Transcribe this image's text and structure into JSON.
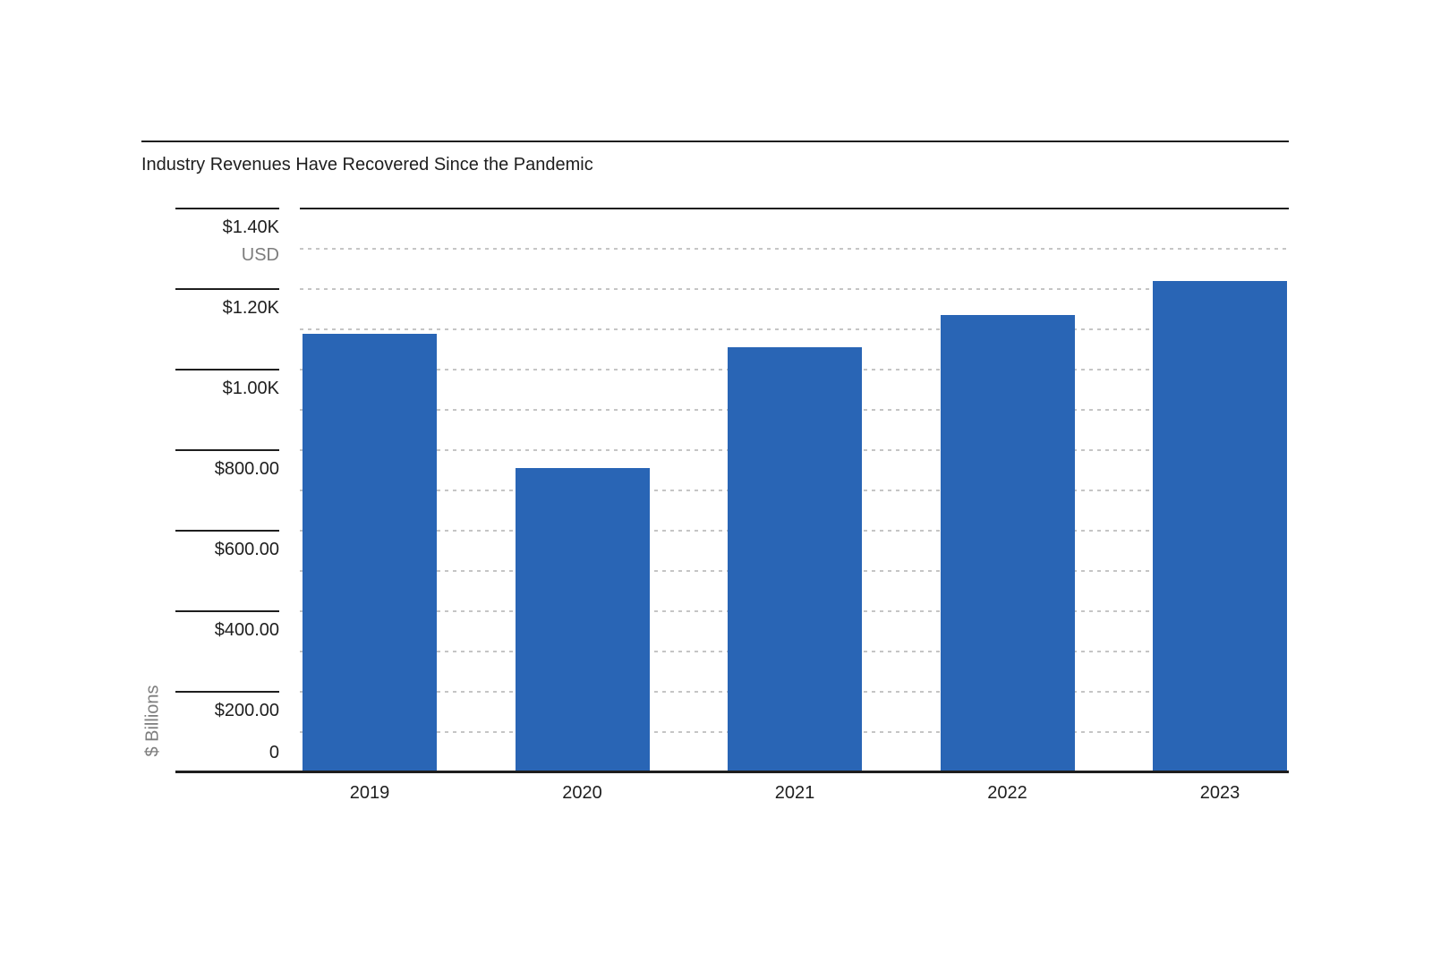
{
  "chart_data": {
    "type": "bar",
    "title": "Industry Revenues Have Recovered Since the Pandemic",
    "categories": [
      "2019",
      "2020",
      "2021",
      "2022",
      "2023"
    ],
    "values": [
      1090,
      755,
      1055,
      1135,
      1220
    ],
    "xlabel": "",
    "ylabel": "$ Billions",
    "currency_label": "USD",
    "ylim": [
      0,
      1400
    ],
    "yticks": [
      {
        "value": 1400,
        "label": "$1.40K"
      },
      {
        "value": 1200,
        "label": "$1.20K"
      },
      {
        "value": 1000,
        "label": "$1.00K"
      },
      {
        "value": 800,
        "label": "$800.00"
      },
      {
        "value": 600,
        "label": "$600.00"
      },
      {
        "value": 400,
        "label": "$400.00"
      },
      {
        "value": 200,
        "label": "$200.00"
      },
      {
        "value": 0,
        "label": "0"
      }
    ],
    "minor_gridline_step": 100,
    "grid": "horizontal-dashed",
    "legend": "none",
    "bar_color": "#2965b5"
  },
  "colors": {
    "bar": "#2965b5",
    "axis_line": "#1e1e1e",
    "gridline": "#c5c5c5",
    "text": "#1e1e1e",
    "muted_text": "#7d7d7d",
    "background": "#ffffff"
  }
}
